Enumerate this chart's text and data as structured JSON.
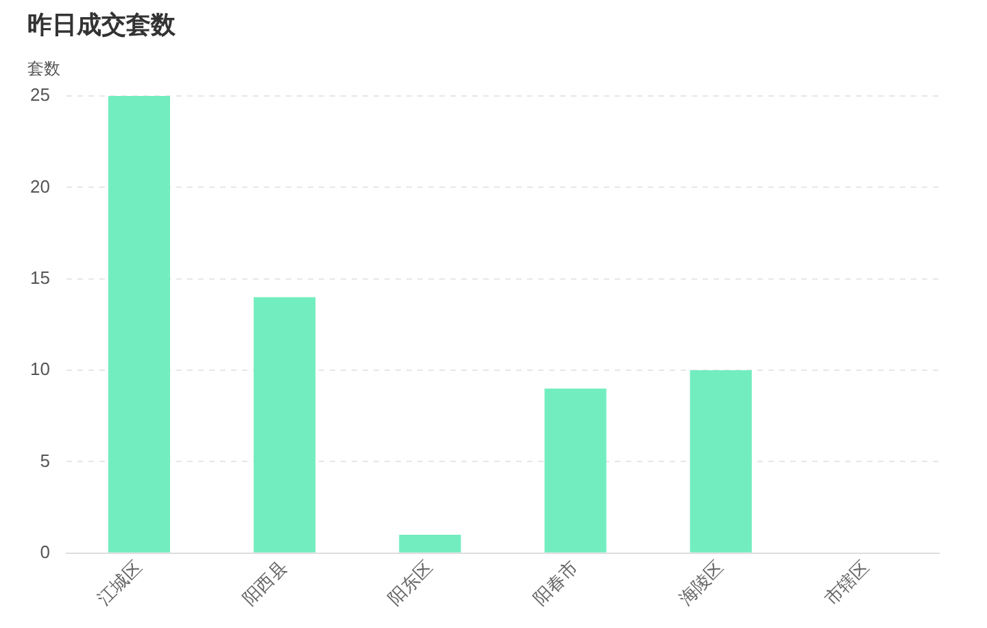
{
  "chart_data": {
    "type": "bar",
    "title": "昨日成交套数",
    "ylabel": "套数",
    "categories": [
      "江城区",
      "阳西县",
      "阳东区",
      "阳春市",
      "海陵区",
      "市辖区"
    ],
    "values": [
      25,
      14,
      1,
      9,
      10,
      0
    ],
    "color": "#72edc0",
    "ylim": [
      0,
      25
    ],
    "yticks": [
      0,
      5,
      10,
      15,
      20,
      25
    ],
    "grid": "y",
    "legend": false
  }
}
